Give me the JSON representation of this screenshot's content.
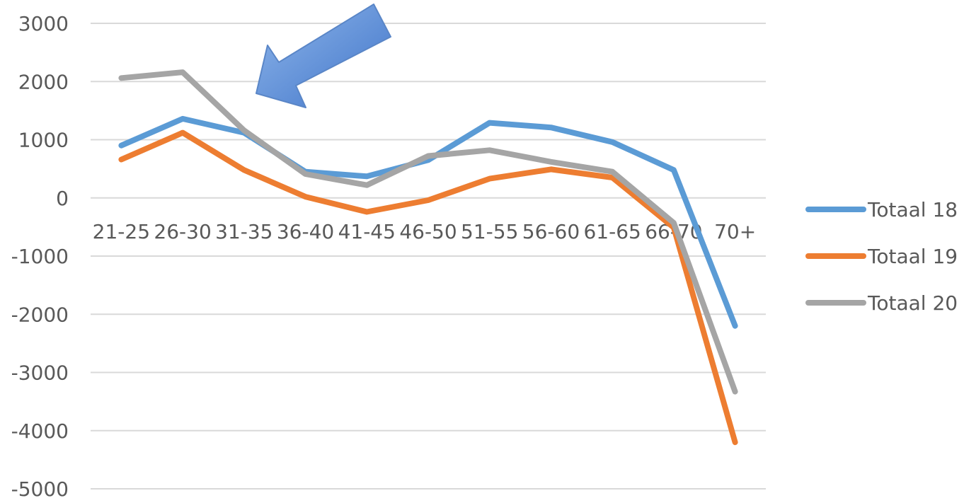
{
  "chart_data": {
    "type": "line",
    "categories": [
      "21-25",
      "26-30",
      "31-35",
      "36-40",
      "41-45",
      "46-50",
      "51-55",
      "56-60",
      "61-65",
      "66-70",
      "70+"
    ],
    "series": [
      {
        "name": "Totaal 18",
        "color": "#5B9BD5",
        "values": [
          900,
          1360,
          1120,
          450,
          370,
          650,
          1290,
          1210,
          960,
          480,
          -2200
        ]
      },
      {
        "name": "Totaal 19",
        "color": "#ED7D31",
        "values": [
          660,
          1120,
          480,
          20,
          -240,
          -40,
          330,
          490,
          350,
          -510,
          -4200
        ]
      },
      {
        "name": "Totaal 20",
        "color": "#A5A5A5",
        "values": [
          2060,
          2160,
          1160,
          410,
          220,
          720,
          820,
          620,
          450,
          -430,
          -3330
        ]
      }
    ],
    "yticks": [
      "3000",
      "2000",
      "1000",
      "0",
      "-1000",
      "-2000",
      "-3000",
      "-4000",
      "-5000"
    ],
    "ylim": [
      -5000,
      3000
    ],
    "grid": true,
    "legend_position": "right",
    "annotation": "blue-arrow-pointing-to-26-30-31-35"
  }
}
